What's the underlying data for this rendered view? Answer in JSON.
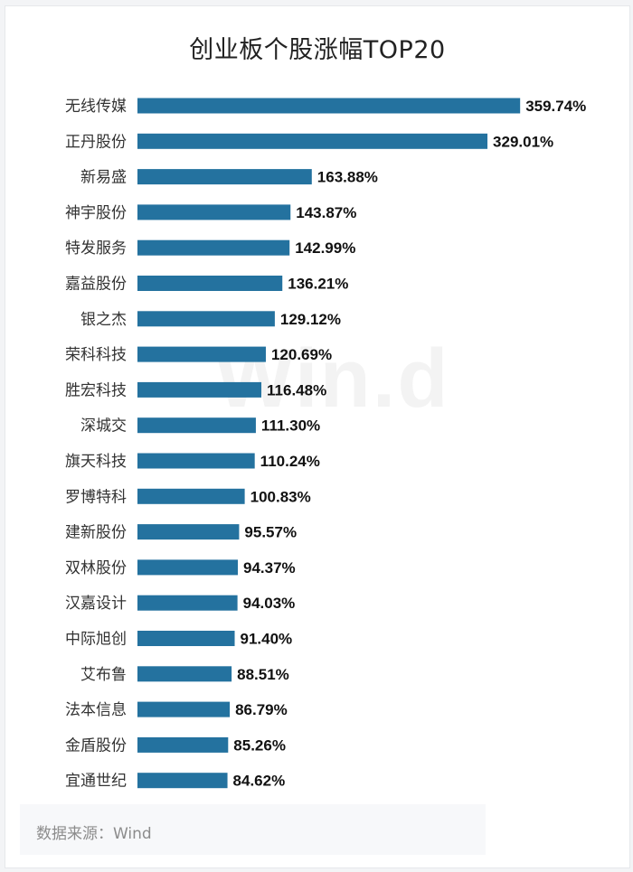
{
  "chart_data": {
    "type": "bar",
    "orientation": "horizontal",
    "title": "创业板个股涨幅TOP20",
    "categories": [
      "无线传媒",
      "正丹股份",
      "新易盛",
      "神宇股份",
      "特发服务",
      "嘉益股份",
      "银之杰",
      "荣科科技",
      "胜宏科技",
      "深城交",
      "旗天科技",
      "罗博特科",
      "建新股份",
      "双林股份",
      "汉嘉设计",
      "中际旭创",
      "艾布鲁",
      "法本信息",
      "金盾股份",
      "宜通世纪"
    ],
    "values": [
      359.74,
      329.01,
      163.88,
      143.87,
      142.99,
      136.21,
      129.12,
      120.69,
      116.48,
      111.3,
      110.24,
      100.83,
      95.57,
      94.37,
      94.03,
      91.4,
      88.51,
      86.79,
      85.26,
      84.62
    ],
    "value_labels": [
      "359.74%",
      "329.01%",
      "163.88%",
      "143.87%",
      "142.99%",
      "136.21%",
      "129.12%",
      "120.69%",
      "116.48%",
      "111.30%",
      "110.24%",
      "100.83%",
      "95.57%",
      "94.37%",
      "94.03%",
      "91.40%",
      "88.51%",
      "86.79%",
      "85.26%",
      "84.62%"
    ],
    "unit": "%",
    "xlim": [
      0,
      360
    ],
    "grid": false,
    "bar_color": "#24729f"
  },
  "watermark": "Win.d",
  "source": "数据来源：Wind"
}
